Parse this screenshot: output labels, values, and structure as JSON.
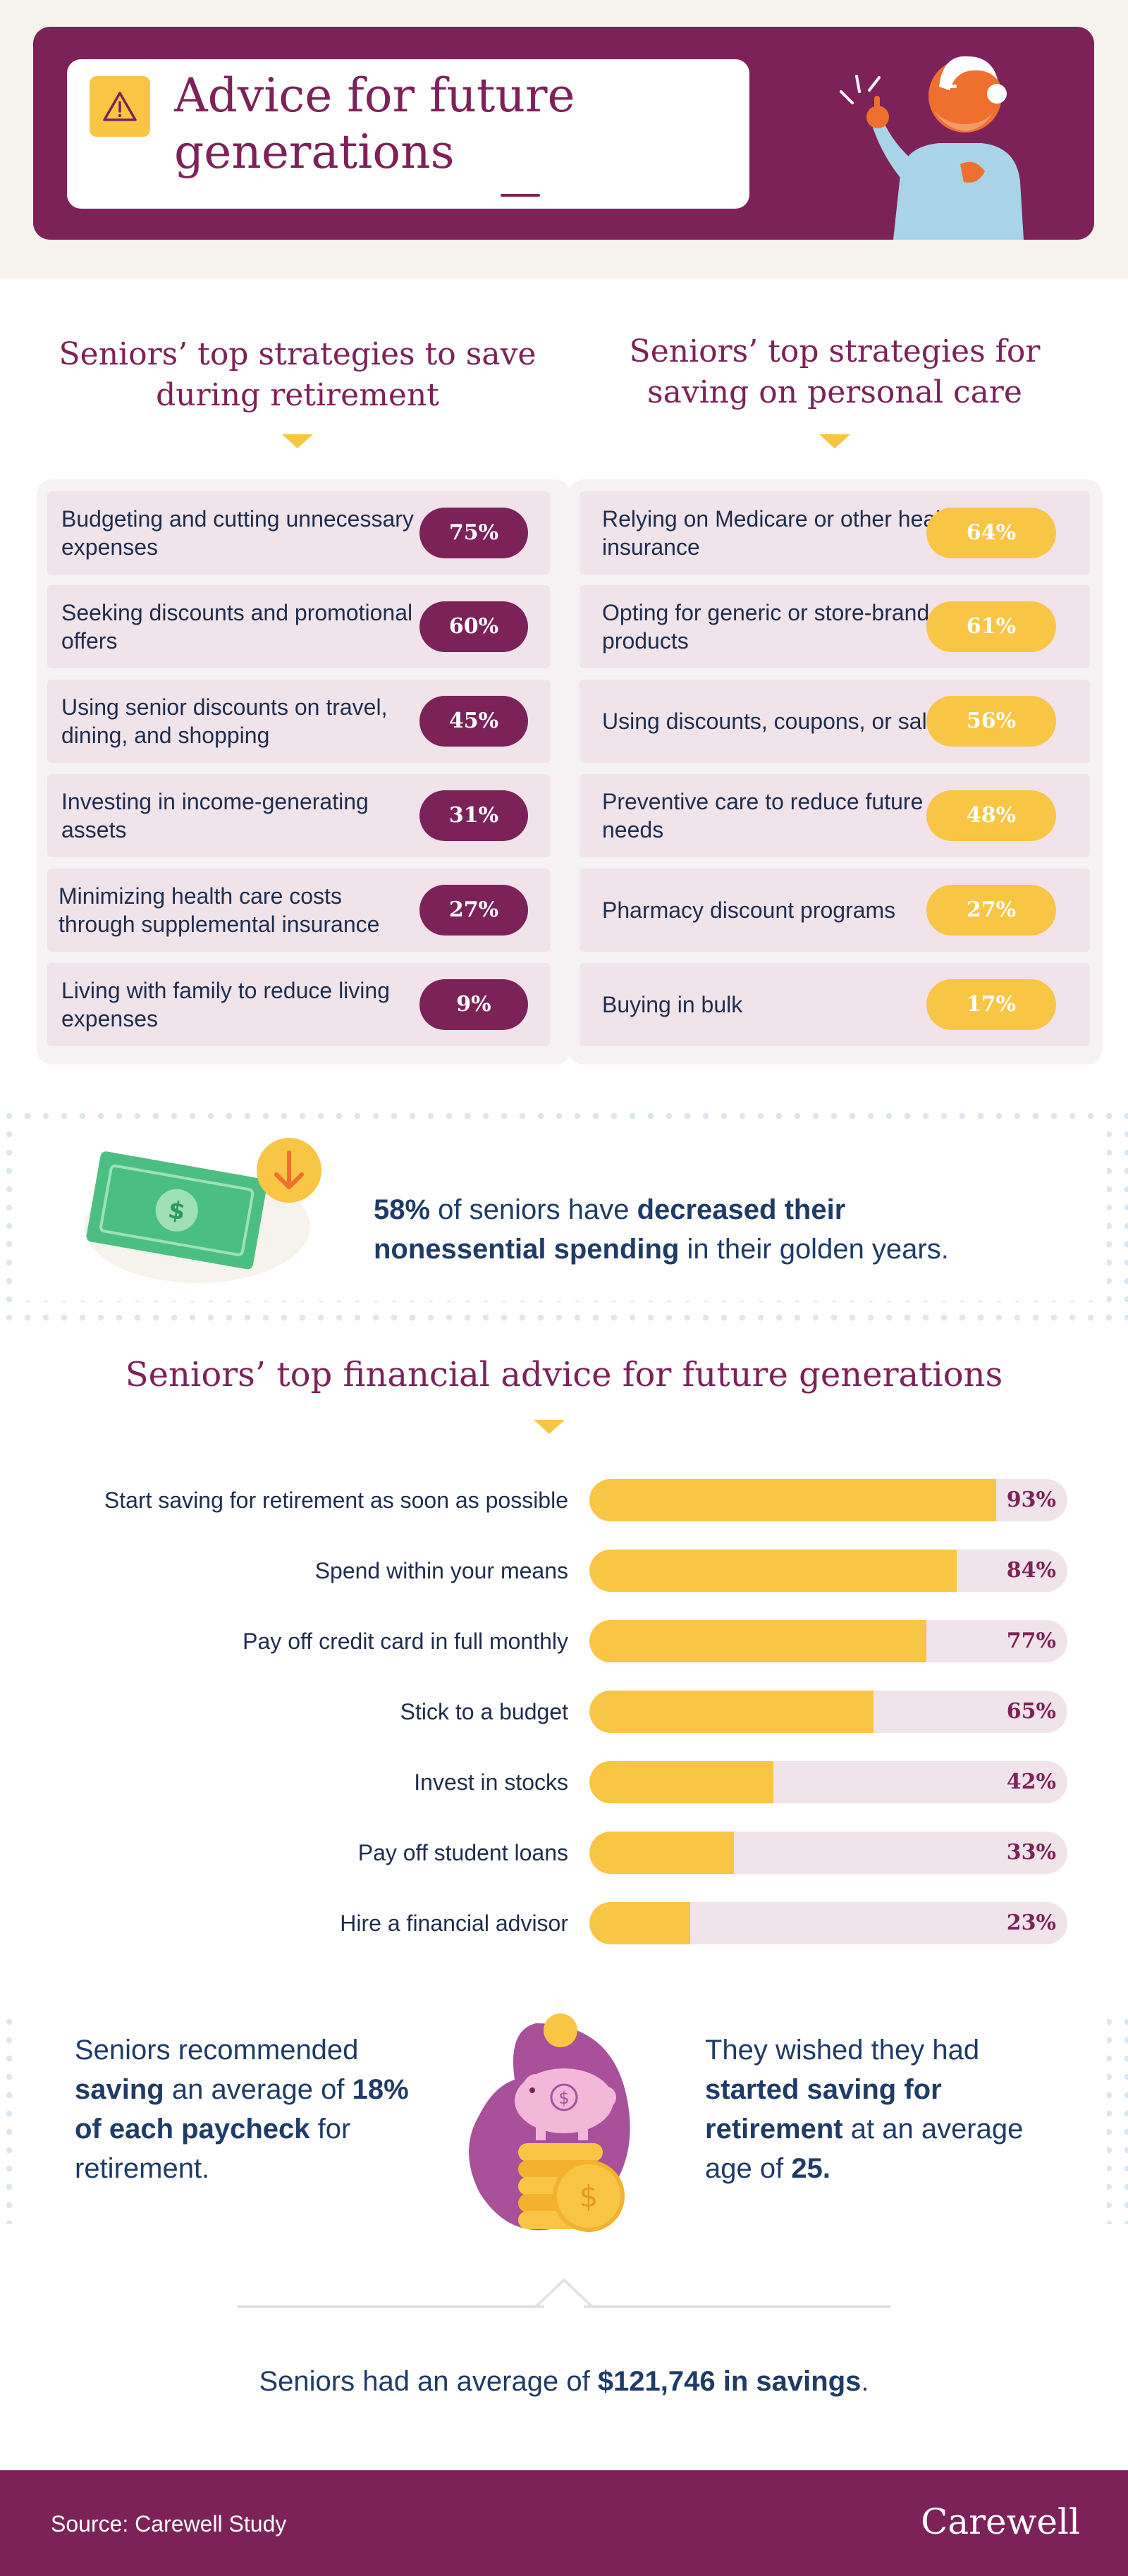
{
  "header": {
    "title": "Advice for future generations",
    "icons": [
      "warning-icon",
      "pointing-senior-illustration"
    ]
  },
  "colors": {
    "purple": "#7d2259",
    "yellow": "#f9c544",
    "navy": "#1f3b66",
    "row_bg": "#f0e3ea"
  },
  "retirement_strategies": {
    "heading": "Seniors’ top strategies to save during retirement",
    "items": [
      {
        "label": "Budgeting and cutting unnecessary expenses",
        "value": "75%"
      },
      {
        "label": "Seeking discounts and promotional offers",
        "value": "60%"
      },
      {
        "label": "Using senior discounts on travel, dining, and shopping",
        "value": "45%"
      },
      {
        "label": "Investing in income-generating assets",
        "value": "31%"
      },
      {
        "label": "Minimizing health care costs through supplemental insurance",
        "value": "27%"
      },
      {
        "label": "Living with family to reduce living expenses",
        "value": "9%"
      }
    ]
  },
  "personal_care_strategies": {
    "heading": "Seniors’ top strategies for saving on personal care",
    "items": [
      {
        "label": "Relying on Medicare or other health insurance",
        "value": "64%"
      },
      {
        "label": "Opting for generic or store-brand products",
        "value": "61%"
      },
      {
        "label": "Using discounts, coupons, or sales",
        "value": "56%"
      },
      {
        "label": "Preventive care to reduce future needs",
        "value": "48%"
      },
      {
        "label": "Pharmacy discount programs",
        "value": "27%"
      },
      {
        "label": "Buying in bulk",
        "value": "17%"
      }
    ]
  },
  "spending_callout": {
    "stat": "58%",
    "text1": " of seniors have ",
    "bold": "decreased their nonessential spending",
    "text2": " in their golden years.",
    "icons": [
      "dollar-bill-icon",
      "down-arrow-icon"
    ]
  },
  "chart_data": {
    "type": "bar",
    "orientation": "horizontal",
    "title": "Seniors’ top financial advice for future generations",
    "categories": [
      "Start saving for retirement as soon as possible",
      "Spend within your means",
      "Pay off credit card in full monthly",
      "Stick to a budget",
      "Invest in stocks",
      "Pay off student loans",
      "Hire a financial advisor"
    ],
    "values": [
      93,
      84,
      77,
      65,
      42,
      33,
      23
    ],
    "value_labels": [
      "93%",
      "84%",
      "77%",
      "65%",
      "42%",
      "33%",
      "23%"
    ],
    "xlim": [
      0,
      100
    ],
    "grid": false,
    "legend": "none"
  },
  "savings_stats": {
    "left_text1": "Seniors recommended ",
    "left_bold1": "saving",
    "left_text2": " an average of ",
    "left_bold2": "18% of each paycheck",
    "left_text3": " for retirement.",
    "right_text1": "They wished they had ",
    "right_bold1": "started saving for retirement",
    "right_text2": " at an average age of ",
    "right_bold2": "25.",
    "icons": [
      "piggy-bank-icon",
      "coin-stack-icon"
    ]
  },
  "total_savings": {
    "text1": "Seniors had an average of ",
    "bold": "$121,746 in savings",
    "text2": "."
  },
  "footer": {
    "source": "Source: Carewell Study",
    "brand": "Carewell"
  }
}
